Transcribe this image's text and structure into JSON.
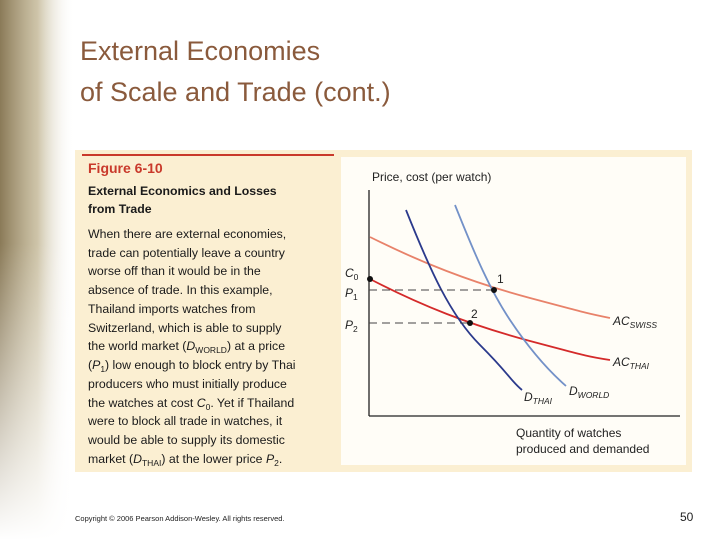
{
  "header": {
    "title_lines": [
      "External Economies",
      "of Scale and Trade (cont.)"
    ]
  },
  "figure": {
    "label": "Figure 6-10",
    "heading_lines": [
      "External Economics and Losses",
      "from Trade"
    ],
    "body_lines": [
      [
        "When there are external economies,"
      ],
      [
        "trade can potentially leave a country"
      ],
      [
        "worse off than it would be in the"
      ],
      [
        "absence of trade. In this example,"
      ],
      [
        "Thailand imports watches from"
      ],
      [
        "Switzerland, which is able to supply"
      ],
      [
        "the world market (",
        "D",
        "WORLD",
        ") at a price"
      ],
      [
        "(",
        "P",
        "1",
        ") low enough to block entry by Thai"
      ],
      [
        "producers who must initially produce"
      ],
      [
        "the watches at cost ",
        "C",
        "0",
        ". Yet if Thailand"
      ],
      [
        "were to block all trade in watches, it"
      ],
      [
        "would be able to supply its domestic"
      ],
      [
        "market (",
        "D",
        "THAI",
        ") at the lower price ",
        "P",
        "2",
        "."
      ]
    ],
    "diagram": {
      "y_axis_label": "Price, cost (per watch)",
      "x_axis_label_lines": [
        "Quantity of watches",
        "produced and demanded"
      ],
      "labels": {
        "c0": [
          "C",
          "0"
        ],
        "p1": [
          "P",
          "1"
        ],
        "p2": [
          "P",
          "2"
        ],
        "point1": "1",
        "point2": "2",
        "ac_swiss": [
          "AC",
          "SWISS"
        ],
        "ac_thai": [
          "AC",
          "THAI"
        ],
        "d_thai": [
          "D",
          "THAI"
        ],
        "d_world": [
          "D",
          "WORLD"
        ]
      }
    }
  },
  "footer": {
    "copyright": "Copyright © 2006 Pearson Addison-Wesley. All rights reserved.",
    "page_number": 50
  }
}
